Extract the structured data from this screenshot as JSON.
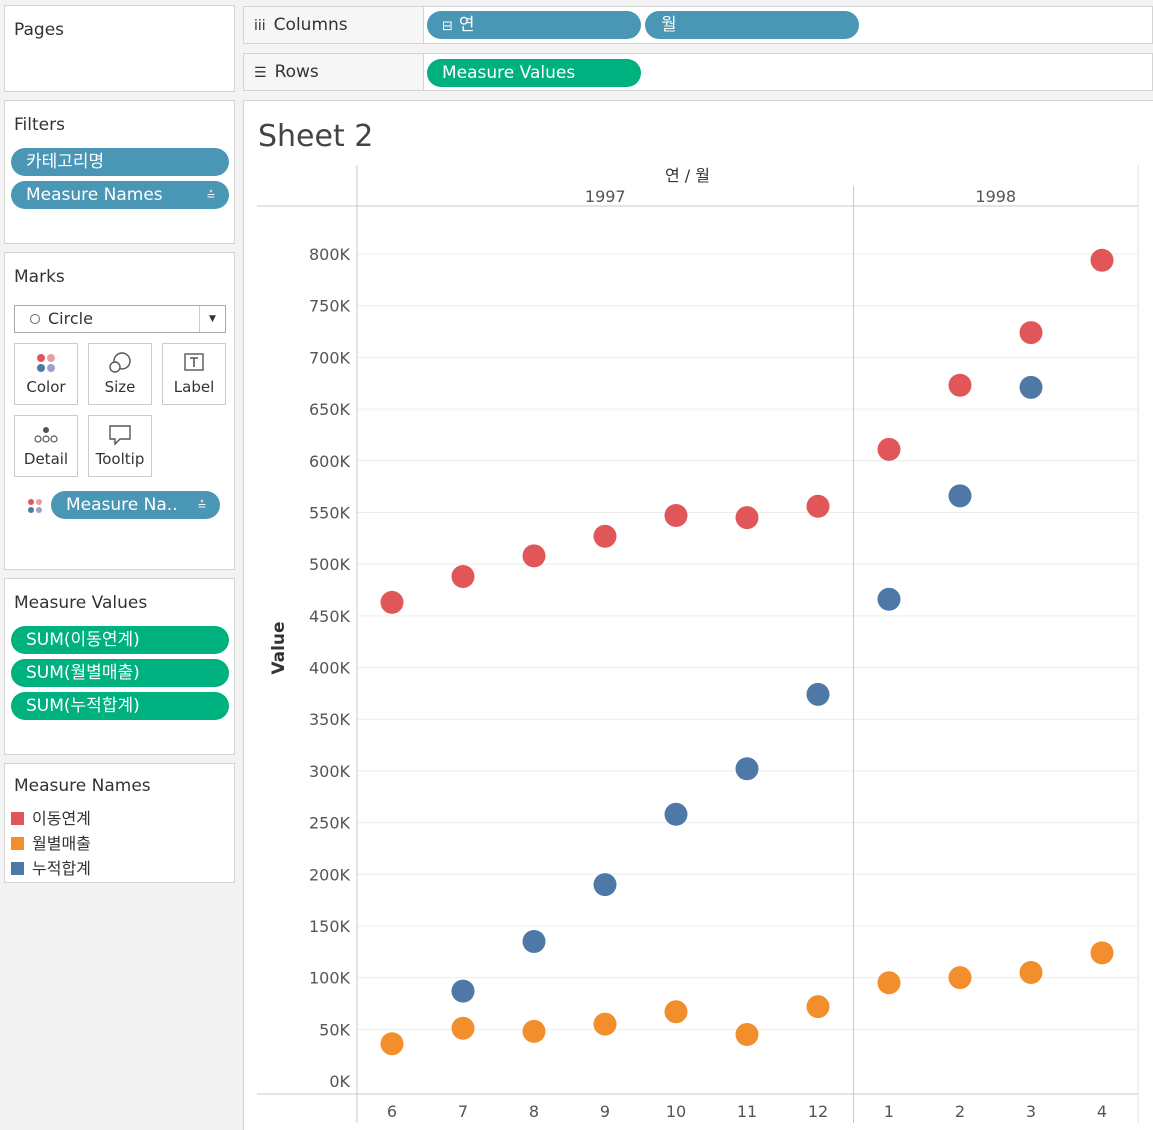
{
  "pages": {
    "title": "Pages"
  },
  "filters": {
    "title": "Filters",
    "items": [
      "카테고리명",
      "Measure Names"
    ]
  },
  "marks": {
    "title": "Marks",
    "type": "Circle",
    "buttons": [
      "Color",
      "Size",
      "Label",
      "Detail",
      "Tooltip"
    ],
    "color_pill": "Measure Na.."
  },
  "measure_values": {
    "title": "Measure Values",
    "items": [
      "SUM(이동연계)",
      "SUM(월별매출)",
      "SUM(누적합계)"
    ]
  },
  "measure_names": {
    "title": "Measure Names",
    "items": [
      {
        "label": "이동연계",
        "color": "#e15759"
      },
      {
        "label": "월별매출",
        "color": "#f28e2b"
      },
      {
        "label": "누적합계",
        "color": "#4e79a7"
      }
    ]
  },
  "shelves": {
    "columns_label": "Columns",
    "columns_pills": [
      "연",
      "월"
    ],
    "rows_label": "Rows",
    "rows_pill": "Measure Values"
  },
  "sheet": {
    "title": "Sheet 2"
  },
  "chart_data": {
    "type": "scatter",
    "header_title": "연 / 월",
    "years": [
      {
        "label": "1997",
        "months": [
          "6",
          "7",
          "8",
          "9",
          "10",
          "11",
          "12"
        ]
      },
      {
        "label": "1998",
        "months": [
          "1",
          "2",
          "3",
          "4"
        ]
      }
    ],
    "categories": [
      "1997-6",
      "1997-7",
      "1997-8",
      "1997-9",
      "1997-10",
      "1997-11",
      "1997-12",
      "1998-1",
      "1998-2",
      "1998-3",
      "1998-4"
    ],
    "ylabel": "Value",
    "ylim": [
      0,
      830000
    ],
    "y_ticks": [
      0,
      50000,
      100000,
      150000,
      200000,
      250000,
      300000,
      350000,
      400000,
      450000,
      500000,
      550000,
      600000,
      650000,
      700000,
      750000,
      800000
    ],
    "y_tick_labels": [
      "0K",
      "50K",
      "100K",
      "150K",
      "200K",
      "250K",
      "300K",
      "350K",
      "400K",
      "450K",
      "500K",
      "550K",
      "600K",
      "650K",
      "700K",
      "750K",
      "800K"
    ],
    "grid": true,
    "series": [
      {
        "name": "이동연계",
        "color": "#e15759",
        "values": [
          463000,
          488000,
          508000,
          527000,
          547000,
          545000,
          556000,
          611000,
          673000,
          724000,
          794000
        ]
      },
      {
        "name": "누적합계",
        "color": "#4e79a7",
        "values": [
          null,
          87000,
          135000,
          190000,
          258000,
          302000,
          374000,
          466000,
          566000,
          671000,
          null
        ]
      },
      {
        "name": "월별매출",
        "color": "#f28e2b",
        "values": [
          36000,
          51000,
          48000,
          55000,
          67000,
          45000,
          72000,
          95000,
          100000,
          105000,
          124000
        ]
      }
    ]
  }
}
